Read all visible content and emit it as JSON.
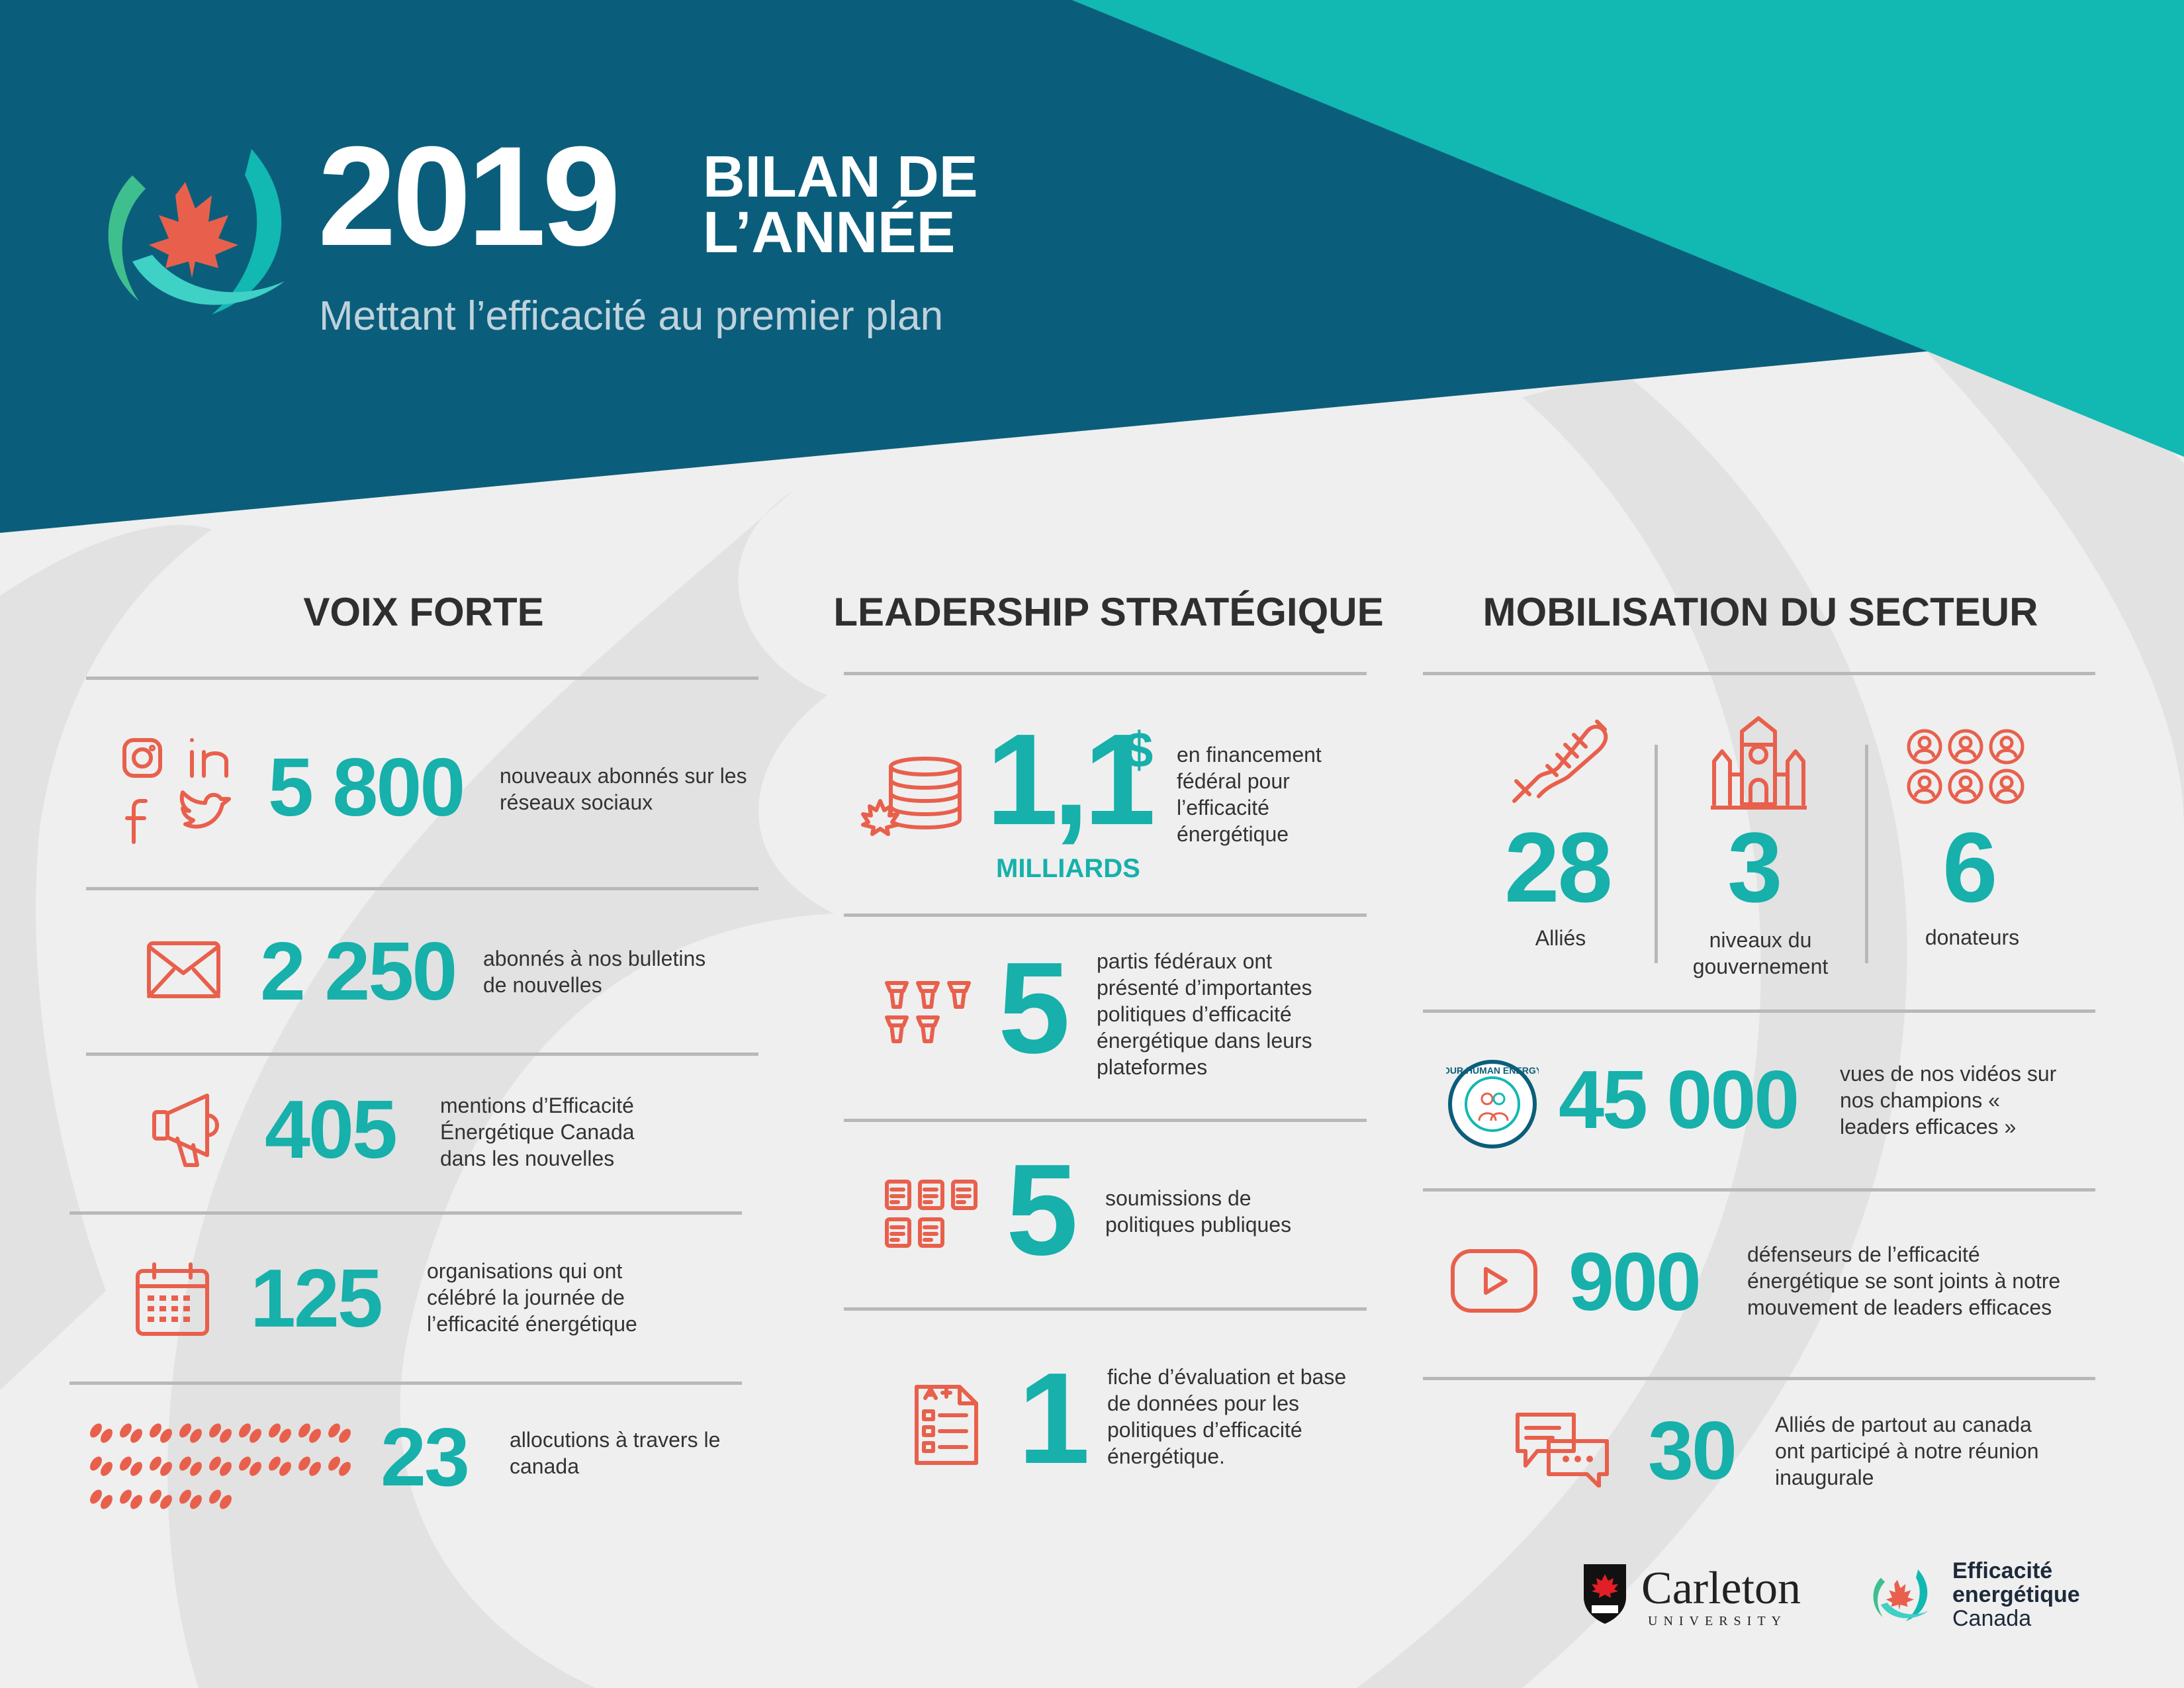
{
  "header": {
    "year": "2019",
    "title_line1": "BILAN DE",
    "title_line2": "L’ANNÉE",
    "subtitle": "Mettant l’efficacité au premier plan"
  },
  "colors": {
    "header_dark": "#0b5e7b",
    "header_teal": "#12b8b2",
    "number_teal": "#17b0ab",
    "icon_coral": "#e8604c"
  },
  "sections": {
    "voix_forte": {
      "title": "VOIX FORTE",
      "items": [
        {
          "icon": "social-media-icons",
          "value": "5 800",
          "text": "nouveaux abonnés sur les réseaux sociaux"
        },
        {
          "icon": "envelope-icon",
          "value": "2 250",
          "text": "abonnés à nos bulletins de nouvelles"
        },
        {
          "icon": "megaphone-icon",
          "value": "405",
          "text": "mentions d’Efficacité Énergétique Canada dans les nouvelles"
        },
        {
          "icon": "calendar-icon",
          "value": "125",
          "text": "organisations qui ont célébré la journée de l’efficacité énergétique"
        },
        {
          "icon": "footprint-icons",
          "value": "23",
          "text": "allocutions à travers le canada"
        }
      ]
    },
    "leadership": {
      "title": "LEADERSHIP STRATÉGIQUE",
      "items": [
        {
          "icon": "coins-icon",
          "value": "1,1",
          "currency": "$",
          "unit": "MILLIARDS",
          "text": "en financement fédéral pour l’efficacité énergétique"
        },
        {
          "icon": "podium-icons",
          "value": "5",
          "text": "partis fédéraux ont présenté d’importantes politiques d’efficacité énergétique dans leurs plateformes"
        },
        {
          "icon": "document-icons",
          "value": "5",
          "text": "soumissions de politiques publiques"
        },
        {
          "icon": "scorecard-icon",
          "value": "1",
          "text": "fiche d’évaluation et base de données pour les politiques d’efficacité énergétique."
        }
      ]
    },
    "mobilisation": {
      "title": "MOBILISATION DU SECTEUR",
      "top": [
        {
          "icon": "handshake-icon",
          "value": "28",
          "label": "Alliés"
        },
        {
          "icon": "parliament-icon",
          "value": "3",
          "label": "niveaux du gouvernement"
        },
        {
          "icon": "people-icons",
          "value": "6",
          "label": "donateurs"
        }
      ],
      "items": [
        {
          "icon": "our-human-energy-badge",
          "value": "45 000",
          "text": "vues de nos vidéos sur nos champions « leaders efficaces »",
          "badge_text": "OUR HUMAN ENERGY"
        },
        {
          "icon": "youtube-icon",
          "value": "900",
          "text": "défenseurs de l’efficacité énergétique se sont joints à notre mouvement de leaders efficaces"
        },
        {
          "icon": "chat-icon",
          "value": "30",
          "text": "Alliés de partout au canada ont participé à notre réunion inaugurale"
        }
      ]
    }
  },
  "footer": {
    "carleton_name": "Carleton",
    "carleton_sub": "UNIVERSITY",
    "eec_line1": "Efficacité",
    "eec_line2": "energétique",
    "eec_line3": "Canada"
  }
}
